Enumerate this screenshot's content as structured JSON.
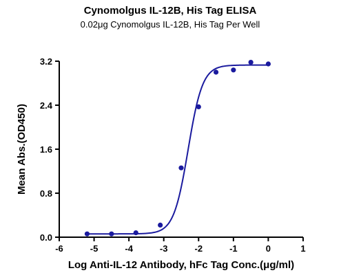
{
  "chart_data": {
    "type": "scatter",
    "title": "Cynomolgus IL-12B, His Tag ELISA",
    "subtitle": "0.02μg Cynomolgus IL-12B, His Tag Per Well",
    "xlabel": "Log Anti-IL-12 Antibody, hFc Tag Conc.(μg/ml)",
    "ylabel": "Mean Abs.(OD450)",
    "xlim": [
      -6,
      1
    ],
    "ylim": [
      0,
      3.2
    ],
    "x_ticks": [
      "-6",
      "-5",
      "-4",
      "-3",
      "-2",
      "-1",
      "0",
      "1"
    ],
    "y_ticks": [
      "0.0",
      "0.8",
      "1.6",
      "2.4",
      "3.2"
    ],
    "grid": false,
    "legend": "none",
    "colors": {
      "series": "#1a1a9e"
    },
    "series": [
      {
        "x": [
          -5.2,
          -4.5,
          -3.8,
          -3.1,
          -2.5,
          -2.0,
          -1.5,
          -1.0,
          -0.5,
          0.0
        ],
        "y": [
          0.06,
          0.06,
          0.08,
          0.22,
          1.26,
          2.37,
          3.0,
          3.04,
          3.18,
          3.15
        ],
        "fit": "4PL"
      }
    ]
  }
}
